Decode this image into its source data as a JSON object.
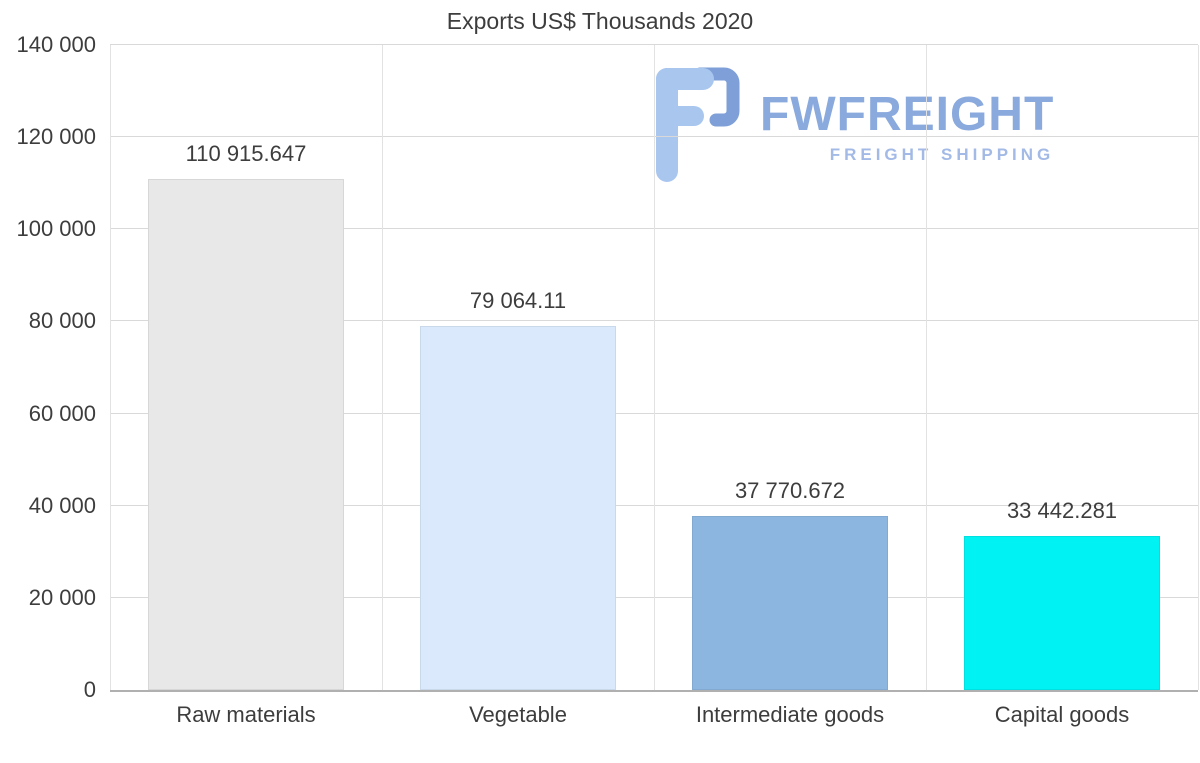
{
  "title": "Exports US$ Thousands 2020",
  "logo": {
    "name": "FWFREIGHT",
    "subtitle": "FREIGHT SHIPPING"
  },
  "chart_data": {
    "type": "bar",
    "title": "Exports US$ Thousands 2020",
    "categories": [
      "Raw materials",
      "Vegetable",
      "Intermediate goods",
      "Capital goods"
    ],
    "values": [
      110915.647,
      79064.11,
      37770.672,
      33442.281
    ],
    "value_labels": [
      "110 915.647",
      "79 064.11",
      "37 770.672",
      "33 442.281"
    ],
    "bar_colors": [
      "#e8e8e8",
      "#daeafc",
      "#8cb6e0",
      "#00f2f2"
    ],
    "xlabel": "",
    "ylabel": "",
    "ylim": [
      0,
      140000
    ],
    "ytick_step": 20000,
    "ytick_labels": [
      "0",
      "20 000",
      "40 000",
      "60 000",
      "80 000",
      "100 000",
      "120 000",
      "140 000"
    ],
    "grid": true,
    "legend": "none"
  },
  "colors": {
    "background": "#ffffff",
    "grid": "#d9d9d9",
    "axis_line": "#b0b0b0",
    "axis_text": "#3d3d3d",
    "logo_text": "#8aa9dd",
    "logo_subtitle": "#a3bae6",
    "logo_glyph_light": "#a9c6ef",
    "logo_glyph_dark": "#7e9fd8"
  }
}
